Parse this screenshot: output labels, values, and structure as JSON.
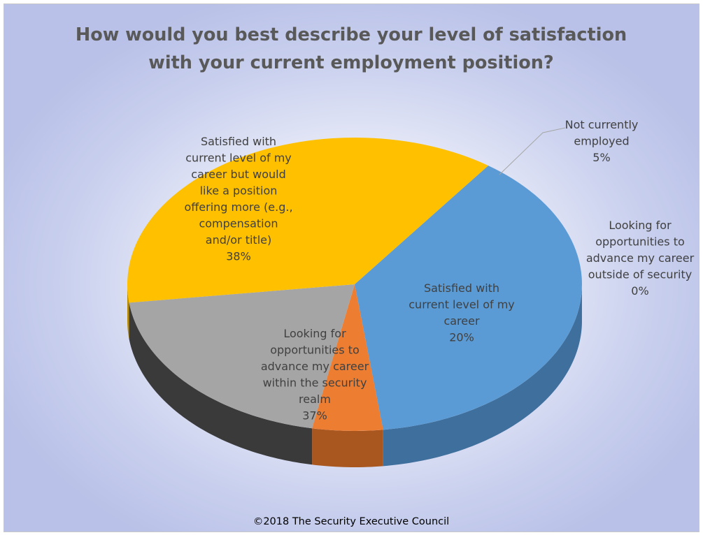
{
  "chart_data": {
    "type": "pie",
    "title_lines": [
      "How would you best describe your level of satisfaction",
      "with your current employment position?"
    ],
    "slices": [
      {
        "key": "satisfied_more",
        "label_lines": [
          "Satisfied with",
          "current level of my",
          "career but would",
          "like a position",
          "offering more (e.g.,",
          "compensation",
          "and/or title)"
        ],
        "percent_text": "38%",
        "value": 38,
        "color": "#5B9BD5",
        "side_color": "#3F6F9C"
      },
      {
        "key": "not_employed",
        "label_lines": [
          "Not currently",
          "employed"
        ],
        "percent_text": "5%",
        "value": 5,
        "color": "#ED7D31",
        "side_color": "#A9561F"
      },
      {
        "key": "satisfied",
        "label_lines": [
          "Satisfied with",
          "current level of my",
          "career"
        ],
        "percent_text": "20%",
        "value": 20,
        "color": "#A5A5A5",
        "side_color": "#3A3A3A"
      },
      {
        "key": "outside_security",
        "label_lines": [
          "Looking for",
          "opportunities to",
          "advance my career",
          "outside of security"
        ],
        "percent_text": "0%",
        "value": 0,
        "color": "#4472C4",
        "side_color": "#2F528F"
      },
      {
        "key": "within_security",
        "label_lines": [
          "Looking for",
          "opportunities to",
          "advance my career",
          "within the security",
          "realm"
        ],
        "percent_text": "37%",
        "value": 37,
        "color": "#FFC000",
        "side_color": "#B98B00"
      }
    ]
  },
  "footer": "©2018 The Security Executive Council"
}
